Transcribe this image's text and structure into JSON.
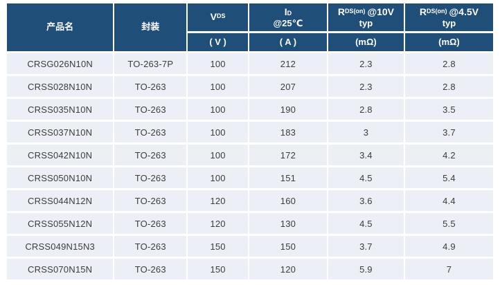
{
  "colors": {
    "header_bg": "#1F4E79",
    "header_text": "#FFFFFF",
    "row_bg": "#ECF0F6",
    "row_text": "#3C3C3C",
    "grid_gap": "#FFFFFF"
  },
  "table": {
    "headers": {
      "product": "产品名",
      "package": "封装",
      "vds": {
        "main": "V",
        "sub": "DS"
      },
      "id": {
        "main": "I",
        "sub": "D",
        "line2": "@25℃"
      },
      "rds10": {
        "main": "R",
        "sub": "DS(on)",
        "rest": "@10V",
        "line2": "typ"
      },
      "rds45": {
        "main": "R",
        "sub": "DS(on)",
        "rest": "@4.5V",
        "line2": "typ"
      },
      "units": {
        "vds": "( V )",
        "id": "( A )",
        "rds10": "(mΩ)",
        "rds45": "(mΩ)"
      }
    },
    "rows": [
      {
        "product": "CRSG026N10N",
        "package": "TO-263-7P",
        "vds": "100",
        "id": "212",
        "rds10": "2.3",
        "rds45": "2.8"
      },
      {
        "product": "CRSS028N10N",
        "package": "TO-263",
        "vds": "100",
        "id": "207",
        "rds10": "2.3",
        "rds45": "2.8"
      },
      {
        "product": "CRSS035N10N",
        "package": "TO-263",
        "vds": "100",
        "id": "190",
        "rds10": "2.8",
        "rds45": "3.5"
      },
      {
        "product": "CRSS037N10N",
        "package": "TO-263",
        "vds": "100",
        "id": "183",
        "rds10": "3",
        "rds45": "3.7"
      },
      {
        "product": "CRSS042N10N",
        "package": "TO-263",
        "vds": "100",
        "id": "172",
        "rds10": "3.4",
        "rds45": "4.2"
      },
      {
        "product": "CRSS050N10N",
        "package": "TO-263",
        "vds": "100",
        "id": "151",
        "rds10": "4.5",
        "rds45": "5.4"
      },
      {
        "product": "CRSS044N12N",
        "package": "TO-263",
        "vds": "120",
        "id": "160",
        "rds10": "3.6",
        "rds45": "4.4"
      },
      {
        "product": "CRSS055N12N",
        "package": "TO-263",
        "vds": "120",
        "id": "130",
        "rds10": "4.5",
        "rds45": "5.5"
      },
      {
        "product": "CRSS049N15N3",
        "package": "TO-263",
        "vds": "150",
        "id": "150",
        "rds10": "3.7",
        "rds45": "4.9"
      },
      {
        "product": "CRSS070N15N",
        "package": "TO-263",
        "vds": "150",
        "id": "120",
        "rds10": "5.9",
        "rds45": "7"
      }
    ]
  }
}
